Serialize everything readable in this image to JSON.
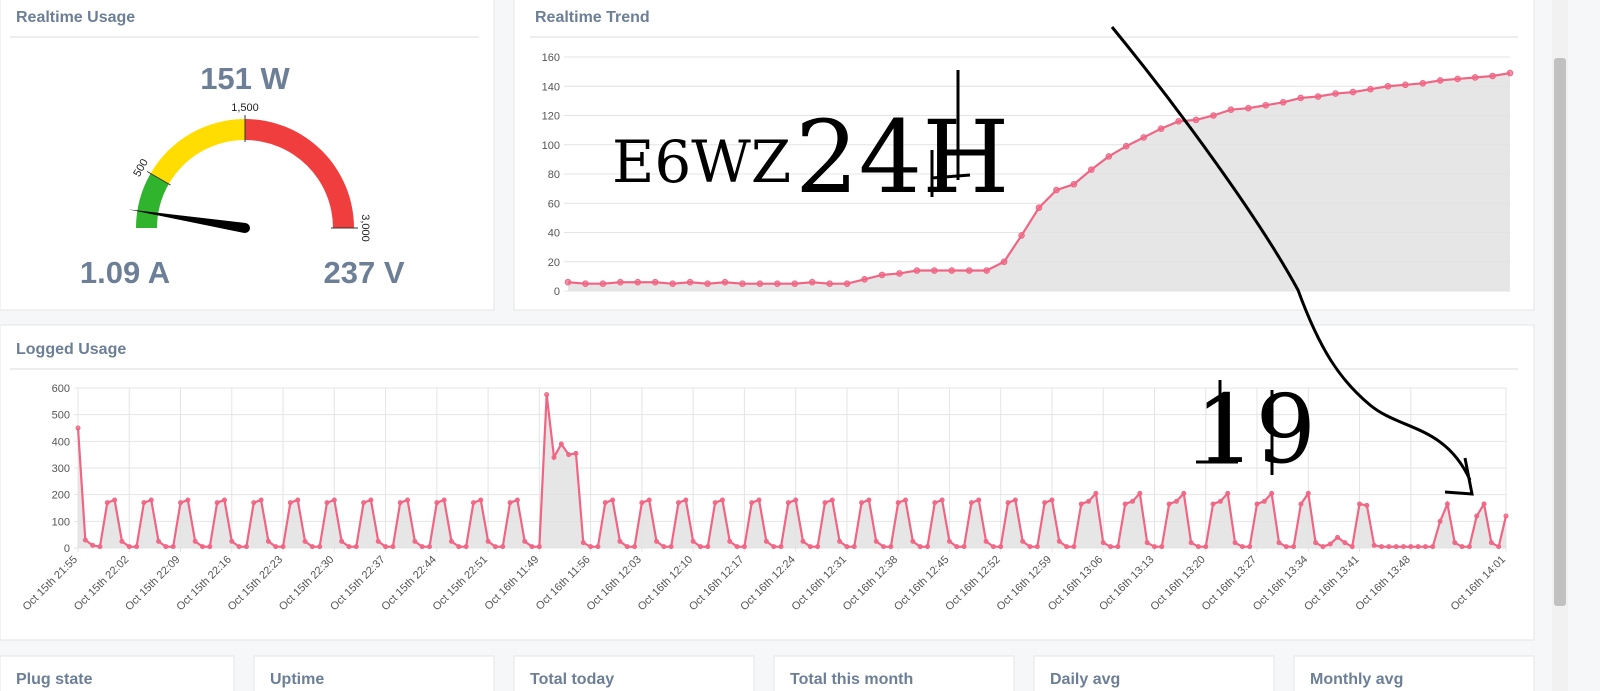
{
  "chart_data": [
    {
      "type": "gauge",
      "title": "Realtime Usage",
      "values": [
        151
      ],
      "value_labels": [
        "151 W"
      ],
      "min": 0,
      "max": 3000,
      "bands": [
        {
          "from": 0,
          "to": 500,
          "color": "#30b32d"
        },
        {
          "from": 500,
          "to": 1500,
          "color": "#ffdd00"
        },
        {
          "from": 1500,
          "to": 3000,
          "color": "#f03e3e"
        }
      ],
      "ticks": [
        500,
        {
          "value": 1500,
          "label": "1,500"
        },
        {
          "value": 3000,
          "label": "3,000"
        }
      ],
      "current": "1.09 A",
      "voltage": "237 V"
    },
    {
      "type": "line",
      "title": "Realtime Trend",
      "color": "#f06584",
      "fill": "#e2e2e2",
      "grid": true,
      "values": [
        6,
        5,
        5,
        6,
        6,
        6,
        5,
        6,
        5,
        6,
        5,
        5,
        5,
        5,
        6,
        5,
        5,
        8,
        11,
        12,
        14,
        14,
        14,
        14,
        14,
        20,
        38,
        57,
        69,
        73,
        83,
        92,
        99,
        105,
        111,
        116,
        117,
        120,
        124,
        125,
        127,
        129,
        132,
        133,
        135,
        136,
        138,
        140,
        141,
        142,
        144,
        145,
        146,
        147,
        149
      ],
      "ylim": [
        0,
        160
      ],
      "yticks": [
        0,
        20,
        40,
        60,
        80,
        100,
        120,
        140,
        160
      ],
      "annotations": [
        "E6WZ",
        "24H"
      ]
    },
    {
      "type": "line",
      "title": "Logged Usage",
      "color": "#f06584",
      "fill": "#e2e2e2",
      "grid": true,
      "categories": [
        "Oct 15th 21:55",
        null,
        null,
        null,
        null,
        null,
        null,
        "Oct 15th 22:02",
        null,
        null,
        null,
        null,
        null,
        null,
        "Oct 15th 22:09",
        null,
        null,
        null,
        null,
        null,
        null,
        "Oct 15th 22:16",
        null,
        null,
        null,
        null,
        null,
        null,
        "Oct 15th 22:23",
        null,
        null,
        null,
        null,
        null,
        null,
        "Oct 15th 22:30",
        null,
        null,
        null,
        null,
        null,
        null,
        "Oct 15th 22:37",
        null,
        null,
        null,
        null,
        null,
        null,
        "Oct 15th 22:44",
        null,
        null,
        null,
        null,
        null,
        null,
        "Oct 15th 22:51",
        null,
        null,
        null,
        null,
        null,
        null,
        "Oct 16th 11:49",
        null,
        null,
        null,
        null,
        null,
        null,
        "Oct 16th 11:56",
        null,
        null,
        null,
        null,
        null,
        null,
        "Oct 16th 12:03",
        null,
        null,
        null,
        null,
        null,
        null,
        "Oct 16th 12:10",
        null,
        null,
        null,
        null,
        null,
        null,
        "Oct 16th 12:17",
        null,
        null,
        null,
        null,
        null,
        null,
        "Oct 16th 12:24",
        null,
        null,
        null,
        null,
        null,
        null,
        "Oct 16th 12:31",
        null,
        null,
        null,
        null,
        null,
        null,
        "Oct 16th 12:38",
        null,
        null,
        null,
        null,
        null,
        null,
        "Oct 16th 12:45",
        null,
        null,
        null,
        null,
        null,
        null,
        "Oct 16th 12:52",
        null,
        null,
        null,
        null,
        null,
        null,
        "Oct 16th 12:59",
        null,
        null,
        null,
        null,
        null,
        null,
        "Oct 16th 13:06",
        null,
        null,
        null,
        null,
        null,
        null,
        "Oct 16th 13:13",
        null,
        null,
        null,
        null,
        null,
        null,
        "Oct 16th 13:20",
        null,
        null,
        null,
        null,
        null,
        null,
        "Oct 16th 13:27",
        null,
        null,
        null,
        null,
        null,
        null,
        "Oct 16th 13:34",
        null,
        null,
        null,
        null,
        null,
        null,
        "Oct 16th 13:41",
        null,
        null,
        null,
        null,
        null,
        null,
        "Oct 16th 13:48",
        null,
        null,
        null,
        null,
        null,
        null,
        null,
        null,
        null,
        null,
        null,
        null,
        "Oct 16th 14:01"
      ],
      "values": [
        450,
        30,
        10,
        5,
        170,
        180,
        25,
        5,
        5,
        170,
        180,
        25,
        5,
        5,
        170,
        180,
        25,
        5,
        5,
        170,
        180,
        25,
        5,
        5,
        170,
        180,
        25,
        5,
        5,
        170,
        180,
        25,
        5,
        5,
        170,
        180,
        25,
        5,
        5,
        170,
        180,
        25,
        5,
        5,
        170,
        180,
        25,
        5,
        5,
        170,
        180,
        25,
        5,
        5,
        170,
        180,
        25,
        5,
        5,
        170,
        180,
        25,
        5,
        5,
        575,
        340,
        390,
        350,
        355,
        20,
        5,
        5,
        170,
        180,
        25,
        5,
        5,
        170,
        180,
        25,
        5,
        5,
        170,
        180,
        25,
        5,
        5,
        170,
        180,
        25,
        5,
        5,
        170,
        180,
        25,
        5,
        5,
        170,
        180,
        25,
        5,
        5,
        170,
        180,
        25,
        5,
        5,
        170,
        180,
        25,
        5,
        5,
        170,
        180,
        25,
        5,
        5,
        170,
        180,
        25,
        5,
        5,
        170,
        180,
        25,
        5,
        5,
        170,
        180,
        25,
        5,
        5,
        170,
        180,
        25,
        5,
        5,
        165,
        175,
        205,
        20,
        5,
        5,
        165,
        175,
        205,
        20,
        5,
        5,
        165,
        175,
        205,
        20,
        5,
        5,
        165,
        175,
        205,
        20,
        5,
        5,
        165,
        175,
        205,
        20,
        5,
        5,
        165,
        205,
        20,
        5,
        15,
        40,
        20,
        5,
        165,
        160,
        10,
        5,
        5,
        5,
        5,
        5,
        5,
        5,
        5,
        100,
        165,
        20,
        5,
        5,
        120,
        165,
        20,
        5,
        120
      ],
      "ylim": [
        0,
        600
      ],
      "yticks": [
        0,
        100,
        200,
        300,
        400,
        500,
        600
      ],
      "annotations": [
        "19"
      ]
    }
  ],
  "stats": [
    "Plug state",
    "Uptime",
    "Total today",
    "Total this month",
    "Daily avg",
    "Monthly avg"
  ]
}
